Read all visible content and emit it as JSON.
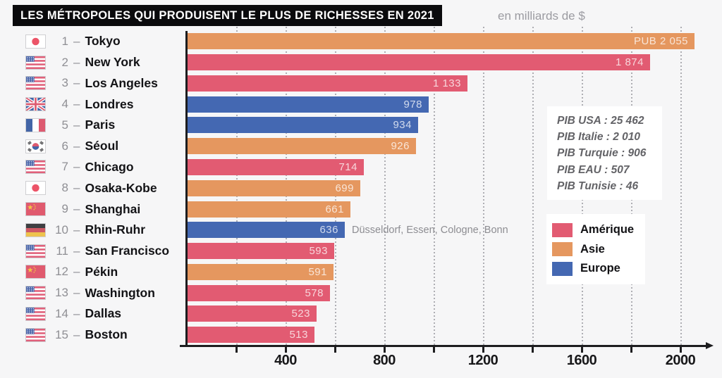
{
  "header": {
    "title": "LES MÉTROPOLES QUI PRODUISENT LE PLUS DE RICHESSES EN 2021",
    "unit": "en milliards de $"
  },
  "chart_data": {
    "type": "bar",
    "orientation": "horizontal",
    "title": "LES MÉTROPOLES QUI PRODUISENT LE PLUS DE RICHESSES EN 2021",
    "unit_label": "en milliards de $",
    "xlim": [
      0,
      2135
    ],
    "x_tick_labels": [
      400,
      800,
      1200,
      1600,
      2000
    ],
    "x_minor_tick_step": 200,
    "grid": "vertical-dotted",
    "rows": [
      {
        "rank": "1",
        "city": "Tokyo",
        "flag": "japan",
        "continent": "Asie",
        "value": 2055,
        "value_label": "PUB 2 055"
      },
      {
        "rank": "2",
        "city": "New York",
        "flag": "usa",
        "continent": "Amérique",
        "value": 1874,
        "value_label": "1 874"
      },
      {
        "rank": "3",
        "city": "Los Angeles",
        "flag": "usa",
        "continent": "Amérique",
        "value": 1133,
        "value_label": "1 133"
      },
      {
        "rank": "4",
        "city": "Londres",
        "flag": "uk",
        "continent": "Europe",
        "value": 978,
        "value_label": "978"
      },
      {
        "rank": "5",
        "city": "Paris",
        "flag": "france",
        "continent": "Europe",
        "value": 934,
        "value_label": "934"
      },
      {
        "rank": "6",
        "city": "Séoul",
        "flag": "south-korea",
        "continent": "Asie",
        "value": 926,
        "value_label": "926"
      },
      {
        "rank": "7",
        "city": "Chicago",
        "flag": "usa",
        "continent": "Amérique",
        "value": 714,
        "value_label": "714"
      },
      {
        "rank": "8",
        "city": "Osaka-Kobe",
        "flag": "japan",
        "continent": "Asie",
        "value": 699,
        "value_label": "699"
      },
      {
        "rank": "9",
        "city": "Shanghai",
        "flag": "china",
        "continent": "Asie",
        "value": 661,
        "value_label": "661"
      },
      {
        "rank": "10",
        "city": "Rhin-Ruhr",
        "flag": "germany",
        "continent": "Europe",
        "value": 636,
        "value_label": "636",
        "annotation": "Düsseldorf, Essen, Cologne, Bonn"
      },
      {
        "rank": "11",
        "city": "San Francisco",
        "flag": "usa",
        "continent": "Amérique",
        "value": 593,
        "value_label": "593"
      },
      {
        "rank": "12",
        "city": "Pékin",
        "flag": "china",
        "continent": "Asie",
        "value": 591,
        "value_label": "591"
      },
      {
        "rank": "13",
        "city": "Washington",
        "flag": "usa",
        "continent": "Amérique",
        "value": 578,
        "value_label": "578"
      },
      {
        "rank": "14",
        "city": "Dallas",
        "flag": "usa",
        "continent": "Amérique",
        "value": 523,
        "value_label": "523"
      },
      {
        "rank": "15",
        "city": "Boston",
        "flag": "usa",
        "continent": "Amérique",
        "value": 513,
        "value_label": "513"
      }
    ],
    "legend": [
      {
        "label": "Amérique",
        "color": "#e25b72"
      },
      {
        "label": "Asie",
        "color": "#e5975f"
      },
      {
        "label": "Europe",
        "color": "#4468b2"
      }
    ],
    "annotation_box": {
      "lines": [
        "PIB USA : 25 462",
        "PIB Italie : 2 010",
        "PIB Turquie : 906",
        "PIB EAU : 507",
        "PIB Tunisie : 46"
      ]
    }
  },
  "colors": {
    "amerique": "#e25b72",
    "asie": "#e5975f",
    "europe": "#4468b2",
    "background": "#f6f6f7",
    "title_bg": "#0b0b0d",
    "axis": "#1d1d1f"
  }
}
